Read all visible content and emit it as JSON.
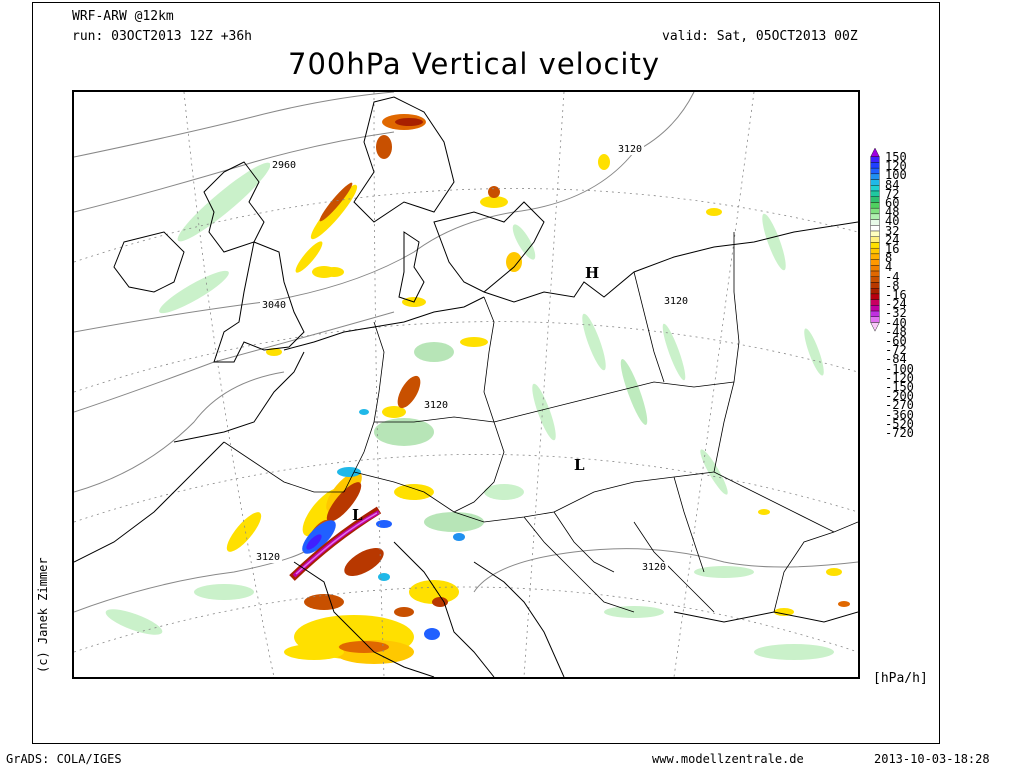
{
  "header": {
    "model": "WRF-ARW @12km",
    "run": "run: 03OCT2013 12Z +36h",
    "valid": "valid: Sat, 05OCT2013 00Z",
    "title": "700hPa Vertical velocity"
  },
  "map": {
    "contour_labels": [
      "2960",
      "3040",
      "3120",
      "3120",
      "3120",
      "3120",
      "3120"
    ],
    "pressure_markers": [
      "H",
      "L",
      "L"
    ]
  },
  "legend": {
    "unit": "[hPa/h]",
    "levels": [
      "150",
      "120",
      "100",
      "84",
      "72",
      "60",
      "48",
      "40",
      "32",
      "24",
      "16",
      "8",
      "4",
      "-4",
      "-8",
      "-16",
      "-24",
      "-32",
      "-40",
      "-48",
      "-60",
      "-72",
      "-84",
      "-100",
      "-120",
      "-150",
      "-200",
      "-270",
      "-360",
      "-520",
      "-720"
    ],
    "colors": [
      "#a000e0",
      "#4020ff",
      "#2040ff",
      "#2060ff",
      "#2090f0",
      "#20b8e8",
      "#20d0d0",
      "#20c8a0",
      "#30c070",
      "#50d060",
      "#80e080",
      "#b0f0b0",
      "#e8fae8",
      "#ffffff",
      "#ffffc0",
      "#fff080",
      "#ffe000",
      "#ffc800",
      "#ffb000",
      "#ff9800",
      "#f08000",
      "#e06800",
      "#c85000",
      "#b83800",
      "#a82000",
      "#b80010",
      "#c80060",
      "#c000a0",
      "#c030e0",
      "#e070f0",
      "#f8c8f8"
    ]
  },
  "copyright": "(c) Janek Zimmer",
  "footer": {
    "left": "GrADS: COLA/IGES",
    "center": "www.modellzentrale.de",
    "right": "2013-10-03-18:28"
  }
}
